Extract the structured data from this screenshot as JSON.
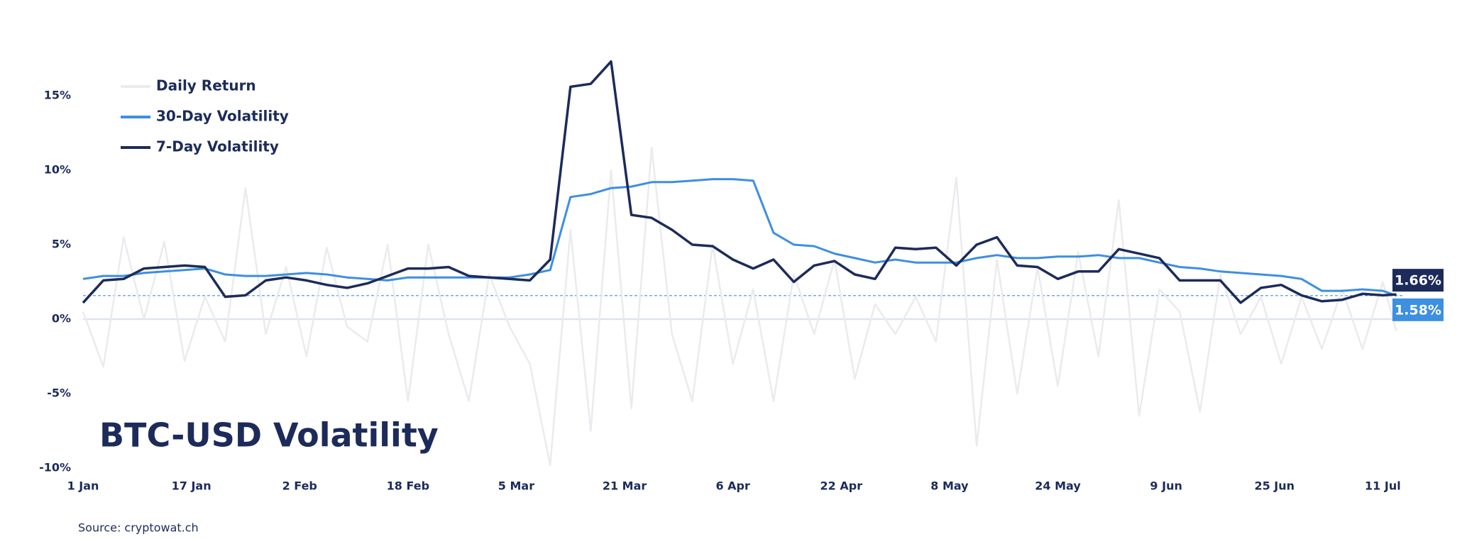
{
  "chart_data": {
    "type": "line",
    "title": "BTC-USD Volatility",
    "source": "Source: cryptowat.ch",
    "x": [
      0,
      3,
      6,
      9,
      12,
      15,
      18,
      21,
      24,
      27,
      30,
      33,
      36,
      39,
      42,
      45,
      48,
      51,
      54,
      57,
      60,
      63,
      66,
      69,
      72,
      75,
      78,
      81,
      84,
      87,
      90,
      93,
      96,
      99,
      102,
      105,
      108,
      111,
      114,
      117,
      120,
      123,
      126,
      129,
      132,
      135,
      138,
      141,
      144,
      147,
      150,
      153,
      156,
      159,
      162,
      165,
      168,
      171,
      174,
      177,
      180,
      183,
      186,
      189,
      192,
      194
    ],
    "xlim": [
      0,
      195
    ],
    "xticks": [
      {
        "value": 0,
        "label": "1 Jan"
      },
      {
        "value": 16,
        "label": "17 Jan"
      },
      {
        "value": 32,
        "label": "2 Feb"
      },
      {
        "value": 48,
        "label": "18 Feb"
      },
      {
        "value": 64,
        "label": "5 Mar"
      },
      {
        "value": 80,
        "label": "21 Mar"
      },
      {
        "value": 96,
        "label": "6 Apr"
      },
      {
        "value": 112,
        "label": "22 Apr"
      },
      {
        "value": 128,
        "label": "8 May"
      },
      {
        "value": 144,
        "label": "24 May"
      },
      {
        "value": 160,
        "label": "9 Jun"
      },
      {
        "value": 176,
        "label": "25 Jun"
      },
      {
        "value": 192,
        "label": "11 Jul"
      }
    ],
    "ylim": [
      -10,
      18
    ],
    "yticks": [
      {
        "value": -10,
        "label": "-10%"
      },
      {
        "value": -5,
        "label": "-5%"
      },
      {
        "value": 0,
        "label": "0%"
      },
      {
        "value": 5,
        "label": "5%"
      },
      {
        "value": 10,
        "label": "10%"
      },
      {
        "value": 15,
        "label": "15%"
      }
    ],
    "series": [
      {
        "name": "Daily Return",
        "color": "#ebebef",
        "width": 2.5,
        "values": [
          0.5,
          -3.2,
          5.5,
          0.0,
          5.2,
          -2.8,
          1.5,
          -1.5,
          8.8,
          -1.0,
          3.5,
          -2.5,
          4.8,
          -0.5,
          -1.5,
          5.0,
          -5.5,
          5.0,
          -1.0,
          -5.5,
          3.0,
          -0.5,
          -3.0,
          -9.8,
          6.0,
          -7.5,
          10.0,
          -6.0,
          11.5,
          -1.0,
          -5.5,
          5.0,
          -3.0,
          2.0,
          -5.5,
          3.0,
          -1.0,
          4.0,
          -4.0,
          1.0,
          -1.0,
          1.5,
          -1.5,
          9.5,
          -8.5,
          4.0,
          -5.0,
          3.5,
          -4.5,
          4.5,
          -2.5,
          8.0,
          -6.5,
          2.0,
          0.5,
          -6.2,
          3.0,
          -1.0,
          1.5,
          -3.0,
          1.5,
          -2.0,
          2.0,
          -2.0,
          2.5,
          -0.8
        ]
      },
      {
        "name": "30-Day Volatility",
        "color": "#3d8fe0",
        "width": 3,
        "values": [
          2.7,
          2.9,
          2.9,
          3.1,
          3.2,
          3.3,
          3.4,
          3.0,
          2.9,
          2.9,
          3.0,
          3.1,
          3.0,
          2.8,
          2.7,
          2.6,
          2.8,
          2.8,
          2.8,
          2.8,
          2.8,
          2.8,
          3.0,
          3.3,
          8.2,
          8.4,
          8.8,
          8.9,
          9.2,
          9.2,
          9.3,
          9.4,
          9.4,
          9.3,
          5.8,
          5.0,
          4.9,
          4.4,
          4.1,
          3.8,
          4.0,
          3.8,
          3.8,
          3.8,
          4.1,
          4.3,
          4.1,
          4.1,
          4.2,
          4.2,
          4.3,
          4.1,
          4.1,
          3.8,
          3.5,
          3.4,
          3.2,
          3.1,
          3.0,
          2.9,
          2.7,
          1.9,
          1.9,
          2.0,
          1.9,
          1.58
        ]
      },
      {
        "name": "7-Day Volatility",
        "color": "#1c2b5a",
        "width": 3.5,
        "values": [
          1.1,
          2.6,
          2.7,
          3.4,
          3.5,
          3.6,
          3.5,
          1.5,
          1.6,
          2.6,
          2.8,
          2.6,
          2.3,
          2.1,
          2.4,
          2.9,
          3.4,
          3.4,
          3.5,
          2.9,
          2.8,
          2.7,
          2.6,
          4.0,
          15.6,
          15.8,
          17.3,
          7.0,
          6.8,
          6.0,
          5.0,
          4.9,
          4.0,
          3.4,
          4.0,
          2.5,
          3.6,
          3.9,
          3.0,
          2.7,
          4.8,
          4.7,
          4.8,
          3.6,
          5.0,
          5.5,
          3.6,
          3.5,
          2.7,
          3.2,
          3.2,
          4.7,
          4.4,
          4.1,
          2.6,
          2.6,
          2.6,
          1.1,
          2.1,
          2.3,
          1.6,
          1.2,
          1.3,
          1.7,
          1.6,
          1.66
        ]
      }
    ],
    "annotations": [
      {
        "value": 1.66,
        "label": "1.66%",
        "color": "#1c2b5a"
      },
      {
        "value": 1.58,
        "label": "1.58%",
        "color": "#3d8fe0"
      }
    ]
  }
}
